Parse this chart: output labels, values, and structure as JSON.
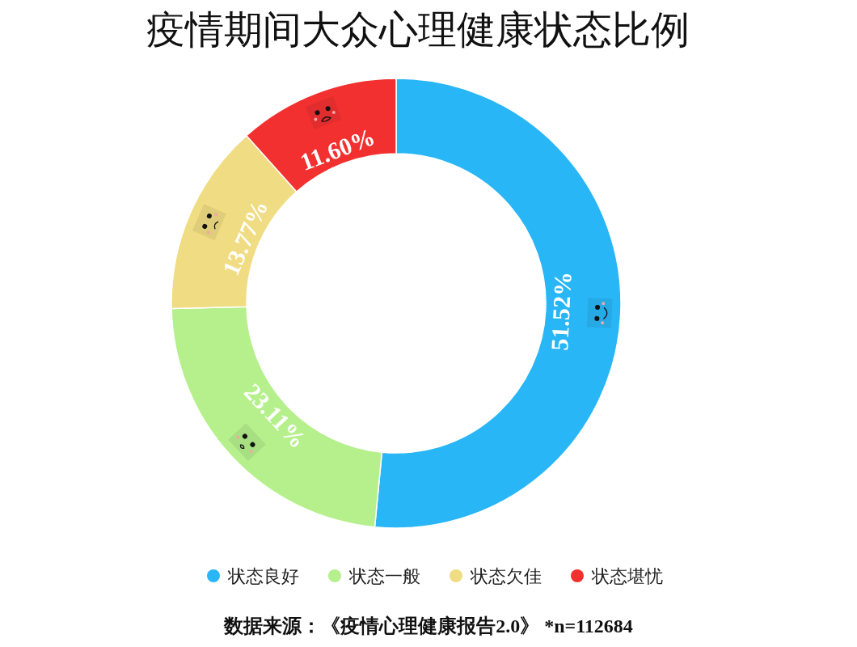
{
  "chart_data": {
    "type": "donut",
    "title": "疫情期间大众心理健康状态比例",
    "categories": [
      "状态良好",
      "状态一般",
      "状态欠佳",
      "状态堪忧"
    ],
    "values": [
      51.52,
      23.11,
      13.77,
      11.6
    ],
    "colors": [
      "#29b6f6",
      "#b5f08c",
      "#f0dc82",
      "#f23030"
    ],
    "value_labels": [
      "51.52%",
      "23.11%",
      "13.77%",
      "11.60%"
    ],
    "legend": "bottom",
    "annotations": [
      "数据来源：《疫情心理健康报告2.0》 *n=112684"
    ]
  }
}
